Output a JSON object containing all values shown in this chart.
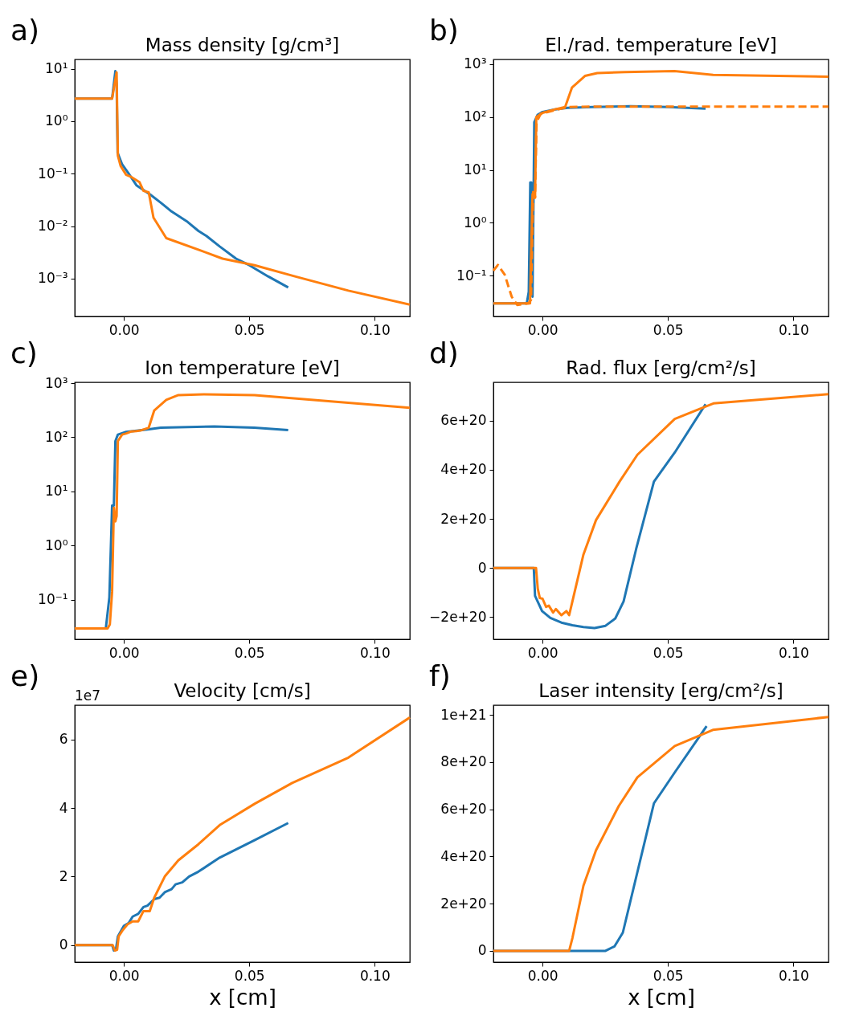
{
  "chart_data": [
    {
      "type": "line",
      "title": "Mass density [g/cm³]",
      "annotations": [
        "a)"
      ],
      "log": true,
      "xlim": [
        -0.0196,
        0.114
      ],
      "ylim": [
        0.00019,
        15
      ],
      "xticks": [
        {
          "value": 0,
          "label": "0.00"
        },
        {
          "value": 0.05,
          "label": "0.05"
        },
        {
          "value": 0.1,
          "label": "0.10"
        }
      ],
      "yticks": [
        {
          "value": 0.001,
          "label": "10⁻³"
        },
        {
          "value": 0.01,
          "label": "10⁻²"
        },
        {
          "value": 0.1,
          "label": "10⁻¹"
        },
        {
          "value": 1,
          "label": "10⁰"
        },
        {
          "value": 10,
          "label": "10¹"
        }
      ],
      "series": [
        {
          "color": "#1f77b4",
          "x": [
            -0.0196,
            -0.0047,
            -0.0034,
            -0.0029,
            -0.0025,
            -0.0007,
            0.0019,
            0.005,
            0.0105,
            0.0147,
            0.019,
            0.0254,
            0.0297,
            0.0329,
            0.0382,
            0.0447,
            0.05,
            0.0575,
            0.0655
          ],
          "values": [
            2.7,
            2.7,
            9,
            5,
            0.25,
            0.15,
            0.1,
            0.06,
            0.04,
            0.028,
            0.019,
            0.012,
            0.0081,
            0.0065,
            0.0041,
            0.0024,
            0.0018,
            0.0011,
            0.00068
          ]
        },
        {
          "color": "#ff7f0e",
          "x": [
            -0.0196,
            -0.0047,
            -0.0029,
            -0.0024,
            -0.0013,
            0.0009,
            0.003,
            0.0062,
            0.0078,
            0.0099,
            0.0118,
            0.0169,
            0.0308,
            0.0393,
            0.0521,
            0.0682,
            0.0895,
            0.114
          ],
          "values": [
            2.7,
            2.7,
            8.5,
            0.22,
            0.14,
            0.095,
            0.086,
            0.069,
            0.047,
            0.044,
            0.0145,
            0.0059,
            0.0034,
            0.0024,
            0.0018,
            0.0011,
            0.00059,
            0.00032
          ]
        }
      ]
    },
    {
      "type": "line",
      "title": "El./rad. temperature [eV]",
      "annotations": [
        "b)"
      ],
      "log": true,
      "xlim": [
        -0.0196,
        0.114
      ],
      "ylim": [
        0.017,
        1230
      ],
      "xticks": [
        {
          "value": 0,
          "label": "0.00"
        },
        {
          "value": 0.05,
          "label": "0.05"
        },
        {
          "value": 0.1,
          "label": "0.10"
        }
      ],
      "yticks": [
        {
          "value": 0.1,
          "label": "10⁻¹"
        },
        {
          "value": 1,
          "label": "10⁰"
        },
        {
          "value": 10,
          "label": "10¹"
        },
        {
          "value": 100,
          "label": "10²"
        },
        {
          "value": 1000,
          "label": "10³"
        }
      ],
      "series": [
        {
          "color": "#1f77b4",
          "x": [
            -0.0196,
            -0.0063,
            -0.0055,
            -0.0049,
            -0.0045,
            -0.004,
            -0.0033,
            -0.002,
            0,
            0.005,
            0.01,
            0.02,
            0.035,
            0.05,
            0.065
          ],
          "values": [
            0.03,
            0.03,
            0.05,
            5.8,
            5.8,
            0.04,
            80,
            110,
            125,
            140,
            150,
            155,
            160,
            155,
            145
          ]
        },
        {
          "color": "#ff7f0e",
          "x": [
            -0.0196,
            -0.005,
            -0.004,
            -0.003,
            -0.0025,
            0,
            0.005,
            0.009,
            0.0117,
            0.0169,
            0.0218,
            0.0328,
            0.0526,
            0.068,
            0.114
          ],
          "values": [
            0.03,
            0.03,
            3.5,
            3,
            100,
            120,
            140,
            155,
            360,
            600,
            680,
            710,
            740,
            630,
            580
          ]
        },
        {
          "color": "#ff7f0e",
          "line_style": "dashed",
          "x": [
            -0.0196,
            -0.0178,
            -0.0151,
            -0.0123,
            -0.0101,
            -0.0057,
            -0.0046,
            -0.0037,
            -0.003,
            -0.0024,
            -0.0008,
            0.005,
            0.01,
            0.02,
            0.05,
            0.114
          ],
          "values": [
            0.125,
            0.16,
            0.105,
            0.04,
            0.028,
            0.03,
            0.035,
            4.3,
            3,
            80,
            115,
            135,
            155,
            158,
            158,
            158
          ]
        }
      ]
    },
    {
      "type": "line",
      "title": "Ion temperature [eV]",
      "annotations": [
        "c)"
      ],
      "log": true,
      "xlim": [
        -0.0196,
        0.114
      ],
      "ylim": [
        0.0186,
        1035
      ],
      "xticks": [
        {
          "value": 0,
          "label": "0.00"
        },
        {
          "value": 0.05,
          "label": "0.05"
        },
        {
          "value": 0.1,
          "label": "0.10"
        }
      ],
      "yticks": [
        {
          "value": 0.1,
          "label": "10⁻¹"
        },
        {
          "value": 1,
          "label": "10⁰"
        },
        {
          "value": 10,
          "label": "10¹"
        },
        {
          "value": 100,
          "label": "10²"
        },
        {
          "value": 1000,
          "label": "10³"
        }
      ],
      "series": [
        {
          "color": "#1f77b4",
          "x": [
            -0.0196,
            -0.0072,
            -0.0058,
            -0.0047,
            -0.004,
            -0.0034,
            -0.0024,
            0.0009,
            0.01,
            0.0147,
            0.0361,
            0.052,
            0.0655
          ],
          "values": [
            0.0296,
            0.0296,
            0.11,
            5.5,
            5.5,
            85,
            112,
            126,
            140,
            150,
            158,
            150,
            136
          ]
        },
        {
          "color": "#ff7f0e",
          "x": [
            -0.0196,
            -0.0065,
            -0.0056,
            -0.0047,
            -0.004,
            -0.0034,
            -0.0029,
            -0.0024,
            -0.0007,
            0.001,
            0.003,
            0.005,
            0.007,
            0.0099,
            0.0121,
            0.0169,
            0.0217,
            0.0318,
            0.0521,
            0.114
          ],
          "values": [
            0.0296,
            0.0296,
            0.035,
            0.14,
            5,
            2.8,
            3.5,
            85,
            112,
            118,
            128,
            130,
            135,
            150,
            313,
            490,
            600,
            620,
            600,
            350
          ]
        }
      ]
    },
    {
      "type": "line",
      "title": "Rad. flux [erg/cm²/s]",
      "annotations": [
        "d)"
      ],
      "xlim": [
        -0.0196,
        0.114
      ],
      "ylim": [
        -2.9e+20,
        7.56e+20
      ],
      "xticks": [
        {
          "value": 0,
          "label": "0.00"
        },
        {
          "value": 0.05,
          "label": "0.05"
        },
        {
          "value": 0.1,
          "label": "0.10"
        }
      ],
      "yticks": [
        {
          "value": -2e+20,
          "label": "−2e+20"
        },
        {
          "value": 0,
          "label": "0"
        },
        {
          "value": 2e+20,
          "label": "2e+20"
        },
        {
          "value": 4e+20,
          "label": "4e+20"
        },
        {
          "value": 6e+20,
          "label": "6e+20"
        }
      ],
      "series": [
        {
          "color": "#1f77b4",
          "x": [
            -0.0196,
            -0.0035,
            -0.003,
            -0.0002,
            0.0031,
            0.0075,
            0.0119,
            0.0163,
            0.0207,
            0.0251,
            0.029,
            0.0323,
            0.0373,
            0.0444,
            0.0527,
            0.065
          ],
          "values": [
            0,
            0,
            -1.13e+20,
            -1.75e+20,
            -2.03e+20,
            -2.22e+20,
            -2.33e+20,
            -2.4e+20,
            -2.44e+20,
            -2.35e+20,
            -2.05e+20,
            -1.36e+20,
            7.7e+19,
            3.52e+20,
            4.7e+20,
            6.67e+20
          ]
        },
        {
          "color": "#ff7f0e",
          "x": [
            -0.0196,
            -0.0026,
            -0.0019,
            -0.0011,
            0,
            0.0014,
            0.0025,
            0.0042,
            0.0053,
            0.0075,
            0.0095,
            0.0106,
            0.0163,
            0.0213,
            0.0307,
            0.0378,
            0.0527,
            0.0681,
            0.114
          ],
          "values": [
            0,
            0,
            -8.5e+19,
            -1.22e+20,
            -1.25e+20,
            -1.58e+20,
            -1.53e+20,
            -1.81e+20,
            -1.67e+20,
            -1.92e+20,
            -1.75e+20,
            -1.92e+20,
            5.5e+19,
            1.95e+20,
            3.52e+20,
            4.61e+20,
            6.07e+20,
            6.7e+20,
            7.08e+20
          ]
        }
      ]
    },
    {
      "type": "line",
      "title": "Velocity [cm/s]",
      "xlabel": "x [cm]",
      "annotations": [
        "e)",
        "1e7"
      ],
      "xlim": [
        -0.0196,
        0.114
      ],
      "ylim": [
        -0.5,
        7
      ],
      "xticks": [
        {
          "value": 0,
          "label": "0.00"
        },
        {
          "value": 0.05,
          "label": "0.05"
        },
        {
          "value": 0.1,
          "label": "0.10"
        }
      ],
      "yticks": [
        0,
        2,
        4,
        6
      ],
      "series": [
        {
          "color": "#1f77b4",
          "x": [
            -0.0196,
            -0.0047,
            -0.004,
            -0.0032,
            -0.0024,
            0,
            0.0019,
            0.0035,
            0.0057,
            0.0078,
            0.0094,
            0.0121,
            0.0142,
            0.0163,
            0.019,
            0.0206,
            0.0233,
            0.026,
            0.0297,
            0.0382,
            0.0521,
            0.0655
          ],
          "values": [
            0,
            0,
            -0.16,
            -0.14,
            0.25,
            0.56,
            0.64,
            0.83,
            0.91,
            1.11,
            1.15,
            1.34,
            1.38,
            1.54,
            1.63,
            1.77,
            1.83,
            2.0,
            2.14,
            2.55,
            3.06,
            3.56
          ]
        },
        {
          "color": "#ff7f0e",
          "x": [
            -0.0196,
            -0.0045,
            -0.0036,
            -0.0027,
            -0.0021,
            -0.0007,
            0.0014,
            0.0035,
            0.0057,
            0.0078,
            0.0103,
            0.0121,
            0.0163,
            0.0217,
            0.0297,
            0.0382,
            0.0521,
            0.0671,
            0.0895,
            0.114
          ],
          "values": [
            0,
            0,
            -0.16,
            -0.14,
            0.25,
            0.41,
            0.6,
            0.69,
            0.69,
            0.99,
            0.99,
            1.38,
            2.0,
            2.47,
            2.94,
            3.5,
            4.12,
            4.73,
            5.47,
            6.64
          ]
        }
      ]
    },
    {
      "type": "line",
      "title": "Laser intensity [erg/cm²/s]",
      "xlabel": "x [cm]",
      "annotations": [
        "f)"
      ],
      "xlim": [
        -0.0196,
        0.114
      ],
      "ylim": [
        -4.8e+19,
        1.041e+21
      ],
      "xticks": [
        {
          "value": 0,
          "label": "0.00"
        },
        {
          "value": 0.05,
          "label": "0.05"
        },
        {
          "value": 0.1,
          "label": "0.10"
        }
      ],
      "yticks": [
        {
          "value": 0,
          "label": "0"
        },
        {
          "value": 2e+20,
          "label": "2e+20"
        },
        {
          "value": 4e+20,
          "label": "4e+20"
        },
        {
          "value": 6e+20,
          "label": "6e+20"
        },
        {
          "value": 8e+20,
          "label": "8e+20"
        },
        {
          "value": 1e+21,
          "label": "1e+21"
        }
      ],
      "series": [
        {
          "color": "#1f77b4",
          "x": [
            -0.0196,
            0.0251,
            0.0287,
            0.032,
            0.0444,
            0.0527,
            0.0654
          ],
          "values": [
            0,
            0,
            1.9e+19,
            7.7e+19,
            6.25e+20,
            7.56e+20,
            9.52e+20
          ]
        },
        {
          "color": "#ff7f0e",
          "x": [
            -0.0196,
            0.0106,
            0.0119,
            0.0163,
            0.0213,
            0.0304,
            0.0378,
            0.0527,
            0.0679,
            0.114
          ],
          "values": [
            0,
            0,
            5.4e+19,
            2.76e+20,
            4.26e+20,
            6.14e+20,
            7.35e+20,
            8.68e+20,
            9.36e+20,
            9.91e+20
          ]
        }
      ]
    }
  ]
}
